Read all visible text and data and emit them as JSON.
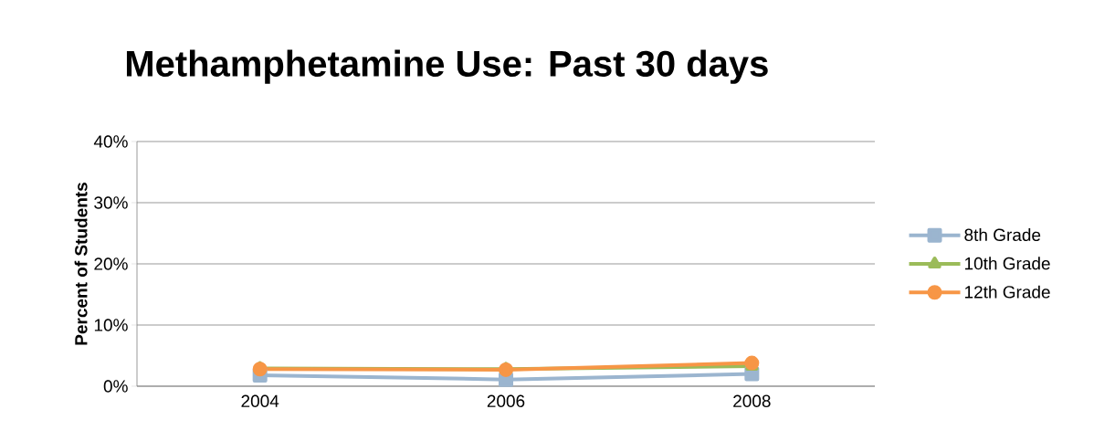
{
  "chart_data": {
    "type": "line",
    "title": "Methamphetamine Use: Past 30 days",
    "ylabel": "Percent of Students",
    "categories": [
      "2004",
      "2006",
      "2008"
    ],
    "series": [
      {
        "name": "8th Grade",
        "color": "#9bb5cf",
        "marker": "square",
        "values": [
          1.8,
          1.1,
          2.0
        ]
      },
      {
        "name": "10th Grade",
        "color": "#9bbb59",
        "marker": "triangle",
        "values": [
          2.9,
          2.8,
          3.3
        ]
      },
      {
        "name": "12th Grade",
        "color": "#f79646",
        "marker": "circle",
        "values": [
          2.8,
          2.7,
          3.8
        ]
      }
    ],
    "ylim": [
      0,
      40
    ],
    "yticks": [
      {
        "value": 0,
        "label": "0%"
      },
      {
        "value": 10,
        "label": "10%"
      },
      {
        "value": 20,
        "label": "20%"
      },
      {
        "value": 30,
        "label": "30%"
      },
      {
        "value": 40,
        "label": "40%"
      }
    ],
    "grid": "y",
    "legend": "right"
  }
}
